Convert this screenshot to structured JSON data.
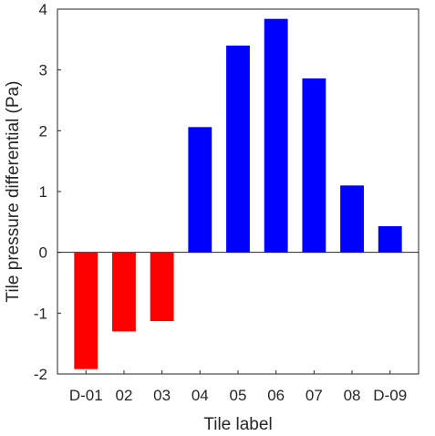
{
  "chart_data": {
    "type": "bar",
    "title": "",
    "xlabel": "Tile label",
    "ylabel": "Tile pressure differential (Pa)",
    "categories": [
      "D-01",
      "02",
      "03",
      "04",
      "05",
      "06",
      "07",
      "08",
      "D-09"
    ],
    "values": [
      -1.92,
      -1.3,
      -1.13,
      2.06,
      3.4,
      3.84,
      2.86,
      1.1,
      0.43
    ],
    "ylim": [
      -2,
      4
    ],
    "yticks": [
      -2,
      -1,
      0,
      1,
      2,
      3,
      4
    ],
    "grid": false,
    "colors": {
      "negative": "#ff0000",
      "positive": "#0000ff",
      "axes": "#262626"
    }
  }
}
